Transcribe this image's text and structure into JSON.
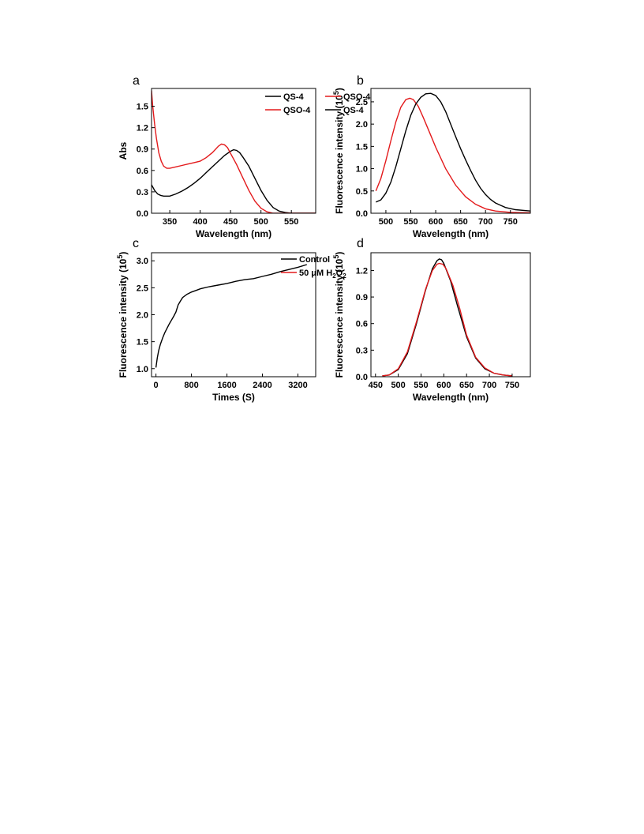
{
  "chart_data": [
    {
      "panel": "a",
      "type": "line",
      "xlabel": "Wavelength (nm)",
      "ylabel": "Abs",
      "xlim": [
        320,
        590
      ],
      "ylim": [
        0,
        1.75
      ],
      "xticks": [
        350,
        400,
        450,
        500,
        550
      ],
      "yticks": [
        0.0,
        0.3,
        0.6,
        0.9,
        1.2,
        1.5
      ],
      "grid": false,
      "legend_position": "top-right",
      "series": [
        {
          "name": "QS-4",
          "color": "#000000",
          "points": [
            [
              320,
              0.4
            ],
            [
              325,
              0.32
            ],
            [
              330,
              0.27
            ],
            [
              335,
              0.25
            ],
            [
              340,
              0.24
            ],
            [
              350,
              0.24
            ],
            [
              360,
              0.27
            ],
            [
              370,
              0.31
            ],
            [
              380,
              0.36
            ],
            [
              390,
              0.42
            ],
            [
              400,
              0.49
            ],
            [
              410,
              0.57
            ],
            [
              420,
              0.65
            ],
            [
              430,
              0.73
            ],
            [
              440,
              0.81
            ],
            [
              450,
              0.87
            ],
            [
              455,
              0.89
            ],
            [
              460,
              0.88
            ],
            [
              465,
              0.85
            ],
            [
              470,
              0.79
            ],
            [
              480,
              0.66
            ],
            [
              490,
              0.49
            ],
            [
              500,
              0.32
            ],
            [
              510,
              0.18
            ],
            [
              520,
              0.08
            ],
            [
              530,
              0.03
            ],
            [
              540,
              0.01
            ],
            [
              550,
              0.0
            ],
            [
              570,
              0.0
            ],
            [
              590,
              0.0
            ]
          ]
        },
        {
          "name": "QSO-4",
          "color": "#e31a1c",
          "points": [
            [
              320,
              1.72
            ],
            [
              322,
              1.5
            ],
            [
              325,
              1.25
            ],
            [
              328,
              1.05
            ],
            [
              332,
              0.85
            ],
            [
              336,
              0.73
            ],
            [
              340,
              0.66
            ],
            [
              345,
              0.63
            ],
            [
              350,
              0.63
            ],
            [
              360,
              0.65
            ],
            [
              370,
              0.67
            ],
            [
              380,
              0.69
            ],
            [
              390,
              0.71
            ],
            [
              400,
              0.73
            ],
            [
              410,
              0.78
            ],
            [
              420,
              0.85
            ],
            [
              430,
              0.94
            ],
            [
              435,
              0.97
            ],
            [
              440,
              0.96
            ],
            [
              445,
              0.92
            ],
            [
              450,
              0.84
            ],
            [
              460,
              0.68
            ],
            [
              470,
              0.5
            ],
            [
              480,
              0.32
            ],
            [
              490,
              0.17
            ],
            [
              500,
              0.07
            ],
            [
              510,
              0.02
            ],
            [
              520,
              0.0
            ],
            [
              560,
              0.0
            ],
            [
              590,
              0.0
            ]
          ]
        }
      ]
    },
    {
      "panel": "b",
      "type": "line",
      "xlabel": "Wavelength (nm)",
      "ylabel": "Fluorescence intensity (10",
      "ylabel_sup": "5",
      "ylabel_end": ")",
      "xlim": [
        470,
        790
      ],
      "ylim": [
        0,
        2.8
      ],
      "xticks": [
        500,
        550,
        600,
        650,
        700,
        750
      ],
      "yticks": [
        0.0,
        0.5,
        1.0,
        1.5,
        2.0,
        2.5
      ],
      "grid": false,
      "legend_position": "top-right",
      "series": [
        {
          "name": "QSO-4",
          "color": "#e31a1c",
          "points": [
            [
              480,
              0.5
            ],
            [
              490,
              0.78
            ],
            [
              500,
              1.18
            ],
            [
              510,
              1.63
            ],
            [
              520,
              2.05
            ],
            [
              530,
              2.38
            ],
            [
              540,
              2.55
            ],
            [
              548,
              2.58
            ],
            [
              555,
              2.55
            ],
            [
              565,
              2.4
            ],
            [
              575,
              2.15
            ],
            [
              590,
              1.75
            ],
            [
              600,
              1.48
            ],
            [
              620,
              1.0
            ],
            [
              640,
              0.63
            ],
            [
              660,
              0.37
            ],
            [
              680,
              0.2
            ],
            [
              700,
              0.1
            ],
            [
              720,
              0.05
            ],
            [
              750,
              0.02
            ],
            [
              790,
              0.01
            ]
          ]
        },
        {
          "name": "QS-4",
          "color": "#000000",
          "points": [
            [
              480,
              0.25
            ],
            [
              490,
              0.3
            ],
            [
              500,
              0.45
            ],
            [
              510,
              0.7
            ],
            [
              520,
              1.05
            ],
            [
              530,
              1.45
            ],
            [
              540,
              1.85
            ],
            [
              550,
              2.2
            ],
            [
              560,
              2.45
            ],
            [
              570,
              2.6
            ],
            [
              580,
              2.68
            ],
            [
              590,
              2.69
            ],
            [
              600,
              2.64
            ],
            [
              610,
              2.5
            ],
            [
              620,
              2.28
            ],
            [
              630,
              2.0
            ],
            [
              640,
              1.72
            ],
            [
              650,
              1.45
            ],
            [
              660,
              1.2
            ],
            [
              670,
              0.96
            ],
            [
              680,
              0.74
            ],
            [
              690,
              0.56
            ],
            [
              700,
              0.42
            ],
            [
              710,
              0.31
            ],
            [
              720,
              0.23
            ],
            [
              740,
              0.13
            ],
            [
              760,
              0.08
            ],
            [
              790,
              0.05
            ]
          ]
        }
      ]
    },
    {
      "panel": "c",
      "type": "line",
      "xlabel": "Times (S)",
      "ylabel": "Fluorescence intensity (10",
      "ylabel_sup": "5",
      "ylabel_end": ")",
      "xlim": [
        -100,
        3600
      ],
      "ylim": [
        0.85,
        3.15
      ],
      "xticks": [
        0,
        800,
        1600,
        2400,
        3200
      ],
      "yticks": [
        1.0,
        1.5,
        2.0,
        2.5,
        3.0
      ],
      "grid": false,
      "series": [
        {
          "name": "",
          "color": "#000000",
          "points": [
            [
              0,
              1.02
            ],
            [
              30,
              1.2
            ],
            [
              60,
              1.33
            ],
            [
              100,
              1.45
            ],
            [
              150,
              1.57
            ],
            [
              200,
              1.67
            ],
            [
              250,
              1.75
            ],
            [
              300,
              1.83
            ],
            [
              350,
              1.9
            ],
            [
              400,
              1.97
            ],
            [
              450,
              2.05
            ],
            [
              500,
              2.18
            ],
            [
              550,
              2.25
            ],
            [
              600,
              2.32
            ],
            [
              700,
              2.38
            ],
            [
              800,
              2.42
            ],
            [
              900,
              2.45
            ],
            [
              1000,
              2.48
            ],
            [
              1200,
              2.52
            ],
            [
              1400,
              2.55
            ],
            [
              1600,
              2.58
            ],
            [
              1800,
              2.62
            ],
            [
              2000,
              2.65
            ],
            [
              2200,
              2.67
            ],
            [
              2400,
              2.71
            ],
            [
              2600,
              2.75
            ],
            [
              2800,
              2.8
            ],
            [
              3000,
              2.84
            ],
            [
              3200,
              2.88
            ],
            [
              3400,
              2.93
            ]
          ]
        }
      ]
    },
    {
      "panel": "d",
      "type": "line",
      "xlabel": "Wavelength (nm)",
      "ylabel": "Fluorescence intensity (10",
      "ylabel_sup": "5",
      "ylabel_end": ")",
      "xlim": [
        440,
        790
      ],
      "ylim": [
        0,
        1.4
      ],
      "xticks": [
        450,
        500,
        550,
        600,
        650,
        700,
        750
      ],
      "yticks": [
        0.0,
        0.3,
        0.6,
        0.9,
        1.2
      ],
      "grid": false,
      "legend_position": "top-right",
      "series": [
        {
          "name": "Control",
          "color": "#000000",
          "points": [
            [
              465,
              0.01
            ],
            [
              480,
              0.02
            ],
            [
              500,
              0.08
            ],
            [
              520,
              0.26
            ],
            [
              540,
              0.6
            ],
            [
              560,
              0.98
            ],
            [
              575,
              1.22
            ],
            [
              585,
              1.31
            ],
            [
              590,
              1.33
            ],
            [
              595,
              1.32
            ],
            [
              600,
              1.28
            ],
            [
              615,
              1.08
            ],
            [
              630,
              0.8
            ],
            [
              650,
              0.45
            ],
            [
              670,
              0.21
            ],
            [
              690,
              0.09
            ],
            [
              710,
              0.04
            ],
            [
              730,
              0.02
            ],
            [
              750,
              0.01
            ]
          ]
        },
        {
          "name": "50 μM H2O2",
          "color": "#e31a1c",
          "points": [
            [
              465,
              0.01
            ],
            [
              480,
              0.02
            ],
            [
              500,
              0.09
            ],
            [
              520,
              0.28
            ],
            [
              540,
              0.62
            ],
            [
              560,
              0.99
            ],
            [
              575,
              1.2
            ],
            [
              585,
              1.27
            ],
            [
              590,
              1.28
            ],
            [
              598,
              1.27
            ],
            [
              605,
              1.22
            ],
            [
              620,
              1.03
            ],
            [
              635,
              0.77
            ],
            [
              650,
              0.47
            ],
            [
              670,
              0.22
            ],
            [
              690,
              0.1
            ],
            [
              710,
              0.04
            ],
            [
              730,
              0.02
            ],
            [
              750,
              0.01
            ]
          ]
        }
      ]
    }
  ]
}
